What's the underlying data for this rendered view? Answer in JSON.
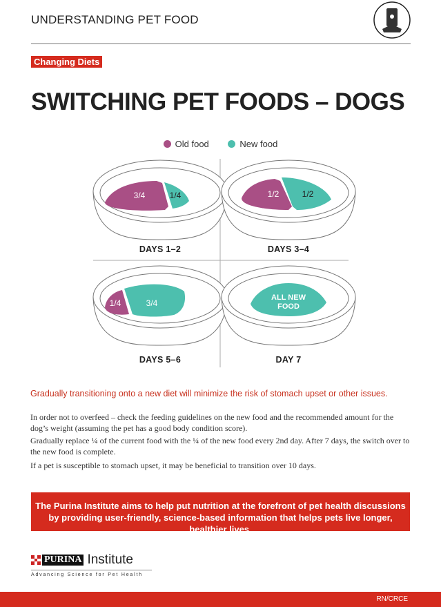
{
  "header": {
    "title": "UNDERSTANDING PET FOOD",
    "icon": "pet-food-bag-icon"
  },
  "tag": "Changing Diets",
  "title": "SWITCHING PET FOODS – DOGS",
  "legend": [
    {
      "label": "Old food",
      "color": "#a94f85"
    },
    {
      "label": "New food",
      "color": "#4dbfae"
    }
  ],
  "stages": [
    {
      "label": "DAYS 1–2",
      "old": "3/4",
      "new": "1/4",
      "old_fraction": 0.75,
      "new_fraction": 0.25
    },
    {
      "label": "DAYS 3–4",
      "old": "1/2",
      "new": "1/2",
      "old_fraction": 0.5,
      "new_fraction": 0.5
    },
    {
      "label": "DAYS 5–6",
      "old": "1/4",
      "new": "3/4",
      "old_fraction": 0.25,
      "new_fraction": 0.75
    },
    {
      "label": "DAY 7",
      "new": "ALL NEW FOOD",
      "old_fraction": 0,
      "new_fraction": 1
    }
  ],
  "lead": "Gradually transitioning onto a new diet will minimize the risk of stomach upset or other issues.",
  "paragraphs": [
    "In order not to overfeed – check the feeding guidelines on the new food and the recommended amount for the dog’s weight (assuming the pet has a good body condition score).",
    "Gradually replace ¼ of the current food with the ¼ of the new food every 2nd day. After 7 days, the switch over to the new food is complete.",
    "If a pet is susceptible to stomach upset, it may be beneficial to transition over 10 days."
  ],
  "banner": "The Purina Institute aims to help put nutrition at the forefront of pet health discussions by providing user-friendly, science-based information that helps pets live longer, healthier lives.",
  "logo": {
    "brand": "PURINA",
    "name": "Institute",
    "tagline": "Advancing Science for Pet Health"
  },
  "footer": {
    "code": "RN/CRCE"
  }
}
